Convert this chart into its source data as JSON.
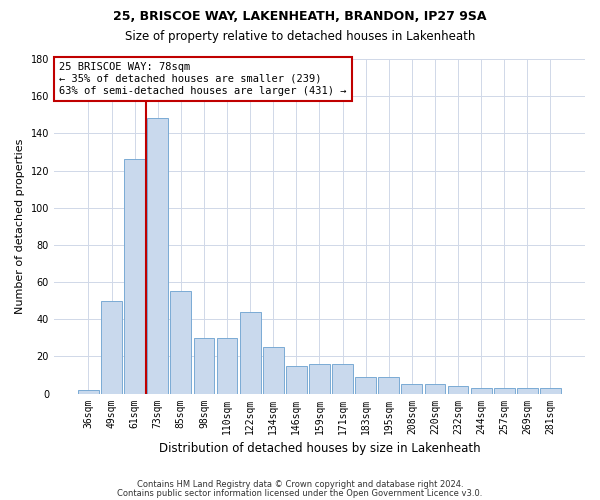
{
  "title": "25, BRISCOE WAY, LAKENHEATH, BRANDON, IP27 9SA",
  "subtitle": "Size of property relative to detached houses in Lakenheath",
  "xlabel": "Distribution of detached houses by size in Lakenheath",
  "ylabel": "Number of detached properties",
  "categories": [
    "36sqm",
    "49sqm",
    "61sqm",
    "73sqm",
    "85sqm",
    "98sqm",
    "110sqm",
    "122sqm",
    "134sqm",
    "146sqm",
    "159sqm",
    "171sqm",
    "183sqm",
    "195sqm",
    "208sqm",
    "220sqm",
    "232sqm",
    "244sqm",
    "257sqm",
    "269sqm",
    "281sqm"
  ],
  "values": [
    2,
    50,
    126,
    148,
    55,
    30,
    30,
    44,
    25,
    15,
    16,
    16,
    9,
    9,
    5,
    5,
    4,
    3,
    3,
    3,
    3
  ],
  "bar_color": "#c9d9ed",
  "bar_edgecolor": "#7aaad4",
  "vline_color": "#c00000",
  "vline_x": 2.5,
  "ylim": [
    0,
    180
  ],
  "yticks": [
    0,
    20,
    40,
    60,
    80,
    100,
    120,
    140,
    160,
    180
  ],
  "annotation_title": "25 BRISCOE WAY: 78sqm",
  "annotation_line1": "← 35% of detached houses are smaller (239)",
  "annotation_line2": "63% of semi-detached houses are larger (431) →",
  "annotation_box_color": "#c00000",
  "footer_line1": "Contains HM Land Registry data © Crown copyright and database right 2024.",
  "footer_line2": "Contains public sector information licensed under the Open Government Licence v3.0.",
  "background_color": "#ffffff",
  "grid_color": "#d0d8e8",
  "title_fontsize": 9,
  "subtitle_fontsize": 8.5,
  "xlabel_fontsize": 8.5,
  "ylabel_fontsize": 8,
  "tick_fontsize": 7,
  "annotation_fontsize": 7.5,
  "footer_fontsize": 6
}
